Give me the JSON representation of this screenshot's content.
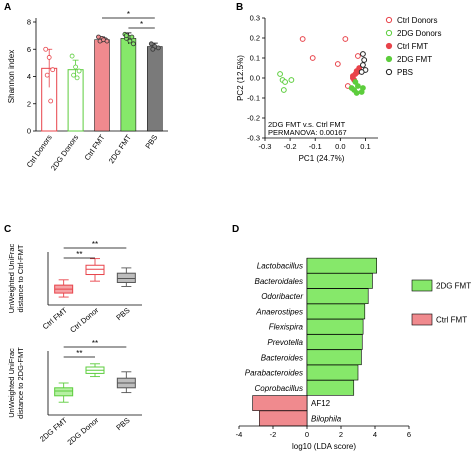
{
  "colors": {
    "red": "#e8434a",
    "red_fill": "#f08a8e",
    "green": "#5ccd3c",
    "green_fill": "#86e86a",
    "gray": "#707070",
    "black": "#222222"
  },
  "chart_data": [
    {
      "panel": "A",
      "type": "bar",
      "ylabel": "Shannon index",
      "ylim": [
        0,
        8
      ],
      "yticks": [
        "0",
        "2",
        "4",
        "6",
        "8"
      ],
      "categories": [
        "Ctrl Donors",
        "2DG Donors",
        "Ctrl FMT",
        "2DG FMT",
        "PBS"
      ],
      "values": [
        4.6,
        4.5,
        6.7,
        6.8,
        6.2
      ],
      "filled": [
        false,
        false,
        true,
        true,
        true
      ],
      "colors": [
        "#e8434a",
        "#5ccd3c",
        "#f08a8e",
        "#86e86a",
        "#7a7a7a"
      ],
      "errors": [
        1.4,
        0.7,
        0.2,
        0.4,
        0.25
      ],
      "points": [
        [
          6.0,
          5.4,
          4.5,
          4.1,
          2.2
        ],
        [
          5.5,
          4.7,
          4.4,
          4.1,
          3.9
        ],
        [
          6.9,
          6.8,
          6.7,
          6.6,
          6.7,
          6.6
        ],
        [
          7.1,
          6.9,
          6.9,
          6.8,
          6.6,
          6.4,
          7.0
        ],
        [
          6.4,
          6.2,
          6.1,
          6.0
        ]
      ],
      "significance": [
        {
          "from": 2,
          "to": 4,
          "label": "*"
        },
        {
          "from": 3,
          "to": 4,
          "label": "*"
        }
      ]
    },
    {
      "panel": "B",
      "type": "scatter",
      "xlabel": "PC1 (24.7%)",
      "ylabel": "PC2 (12.5%)",
      "xlim": [
        -0.3,
        0.15
      ],
      "ylim": [
        -0.3,
        0.3
      ],
      "xticks": [
        "-0.3",
        "-0.2",
        "-0.1",
        "0.0",
        "0.1"
      ],
      "yticks": [
        "-0.3",
        "-0.2",
        "-0.1",
        "0.0",
        "0.1",
        "0.2",
        "0.3"
      ],
      "annotation_lines": [
        "2DG FMT v.s. Ctrl FMT",
        "PERMANOVA: 0.00167"
      ],
      "legend_position": "right",
      "series": [
        {
          "name": "Ctrl Donors",
          "color": "#e8434a",
          "filled": false,
          "points": [
            [
              -0.15,
              0.195
            ],
            [
              0.02,
              0.195
            ],
            [
              -0.11,
              0.1
            ],
            [
              -0.01,
              0.07
            ],
            [
              0.07,
              0.11
            ],
            [
              0.03,
              -0.04
            ]
          ]
        },
        {
          "name": "2DG Donors",
          "color": "#5ccd3c",
          "filled": false,
          "points": [
            [
              -0.24,
              0.02
            ],
            [
              -0.23,
              -0.01
            ],
            [
              -0.22,
              -0.02
            ],
            [
              -0.195,
              -0.01
            ],
            [
              -0.225,
              -0.06
            ]
          ]
        },
        {
          "name": "Ctrl FMT",
          "color": "#e8434a",
          "filled": true,
          "points": [
            [
              0.05,
              0.01
            ],
            [
              0.06,
              0.02
            ],
            [
              0.065,
              0.035
            ],
            [
              0.05,
              0.0
            ],
            [
              0.07,
              0.03
            ],
            [
              0.055,
              -0.01
            ],
            [
              0.075,
              0.05
            ]
          ]
        },
        {
          "name": "2DG FMT",
          "color": "#5ccd3c",
          "filled": true,
          "points": [
            [
              0.06,
              -0.02
            ],
            [
              0.07,
              -0.04
            ],
            [
              0.045,
              -0.05
            ],
            [
              0.09,
              -0.05
            ],
            [
              0.055,
              -0.06
            ],
            [
              0.085,
              -0.07
            ],
            [
              0.065,
              -0.075
            ]
          ]
        },
        {
          "name": "PBS",
          "color": "#222222",
          "filled": false,
          "points": [
            [
              0.09,
              0.12
            ],
            [
              0.095,
              0.09
            ],
            [
              0.09,
              0.065
            ],
            [
              0.1,
              0.04
            ],
            [
              0.085,
              0.03
            ]
          ]
        }
      ]
    },
    {
      "panel": "C",
      "type": "box",
      "ylabel_lines": [
        "UnWeighted UniFrac",
        "distance to Ctrl-FMT"
      ],
      "categories": [
        "Ctrl FMT",
        "Ctrl Donor",
        "PBS"
      ],
      "colors": [
        "#e8434a",
        "#e8434a",
        "#555555"
      ],
      "fills": [
        "#f5a3a6",
        "#ffffff",
        "#bdbdbd"
      ],
      "boxes": [
        {
          "min": 0.16,
          "q1": 0.19,
          "median": 0.22,
          "q3": 0.25,
          "max": 0.29
        },
        {
          "min": 0.28,
          "q1": 0.33,
          "median": 0.37,
          "q3": 0.4,
          "max": 0.45
        },
        {
          "min": 0.24,
          "q1": 0.27,
          "median": 0.3,
          "q3": 0.34,
          "max": 0.38
        }
      ],
      "ylim": [
        0.1,
        0.5
      ],
      "significance": [
        {
          "from": 0,
          "to": 1,
          "label": "**"
        },
        {
          "from": 0,
          "to": 2,
          "label": "**"
        }
      ]
    },
    {
      "panel": "C2",
      "type": "box",
      "ylabel_lines": [
        "UnWeighted UniFrac",
        "distance to 2DG-FMT"
      ],
      "categories": [
        "2DG FMT",
        "2DG Donor",
        "PBS"
      ],
      "colors": [
        "#5ccd3c",
        "#5ccd3c",
        "#555555"
      ],
      "fills": [
        "#b6f0a3",
        "#ffffff",
        "#bdbdbd"
      ],
      "boxes": [
        {
          "min": 0.18,
          "q1": 0.22,
          "median": 0.25,
          "q3": 0.27,
          "max": 0.3
        },
        {
          "min": 0.34,
          "q1": 0.36,
          "median": 0.38,
          "q3": 0.4,
          "max": 0.42
        },
        {
          "min": 0.24,
          "q1": 0.27,
          "median": 0.3,
          "q3": 0.33,
          "max": 0.37
        }
      ],
      "ylim": [
        0.1,
        0.5
      ],
      "significance": [
        {
          "from": 0,
          "to": 1,
          "label": "**"
        },
        {
          "from": 0,
          "to": 2,
          "label": "**"
        }
      ]
    },
    {
      "panel": "D",
      "type": "bar",
      "orientation": "horizontal",
      "xlabel": "log10 (LDA score)",
      "xlim": [
        -4,
        6
      ],
      "xticks": [
        "-4",
        "-2",
        "0",
        "2",
        "4",
        "6"
      ],
      "categories": [
        "Lactobacillus",
        "Bacteroidales",
        "Odoribacter",
        "Anaerostipes",
        "Flexispira",
        "Prevotella",
        "Bacteroides",
        "Parabacteroides",
        "Coprobacillus",
        "AF12",
        "Bilophila"
      ],
      "italic": [
        true,
        true,
        true,
        true,
        true,
        true,
        true,
        true,
        true,
        false,
        true
      ],
      "values": [
        4.1,
        3.85,
        3.6,
        3.4,
        3.3,
        3.25,
        3.2,
        3.0,
        2.75,
        -3.2,
        -2.8
      ],
      "groups": [
        "2DG FMT",
        "2DG FMT",
        "2DG FMT",
        "2DG FMT",
        "2DG FMT",
        "2DG FMT",
        "2DG FMT",
        "2DG FMT",
        "2DG FMT",
        "Ctrl FMT",
        "Ctrl FMT"
      ],
      "legend": [
        {
          "name": "2DG FMT",
          "color": "#86e86a"
        },
        {
          "name": "Ctrl FMT",
          "color": "#f08a8e"
        }
      ],
      "legend_position": "right"
    }
  ]
}
